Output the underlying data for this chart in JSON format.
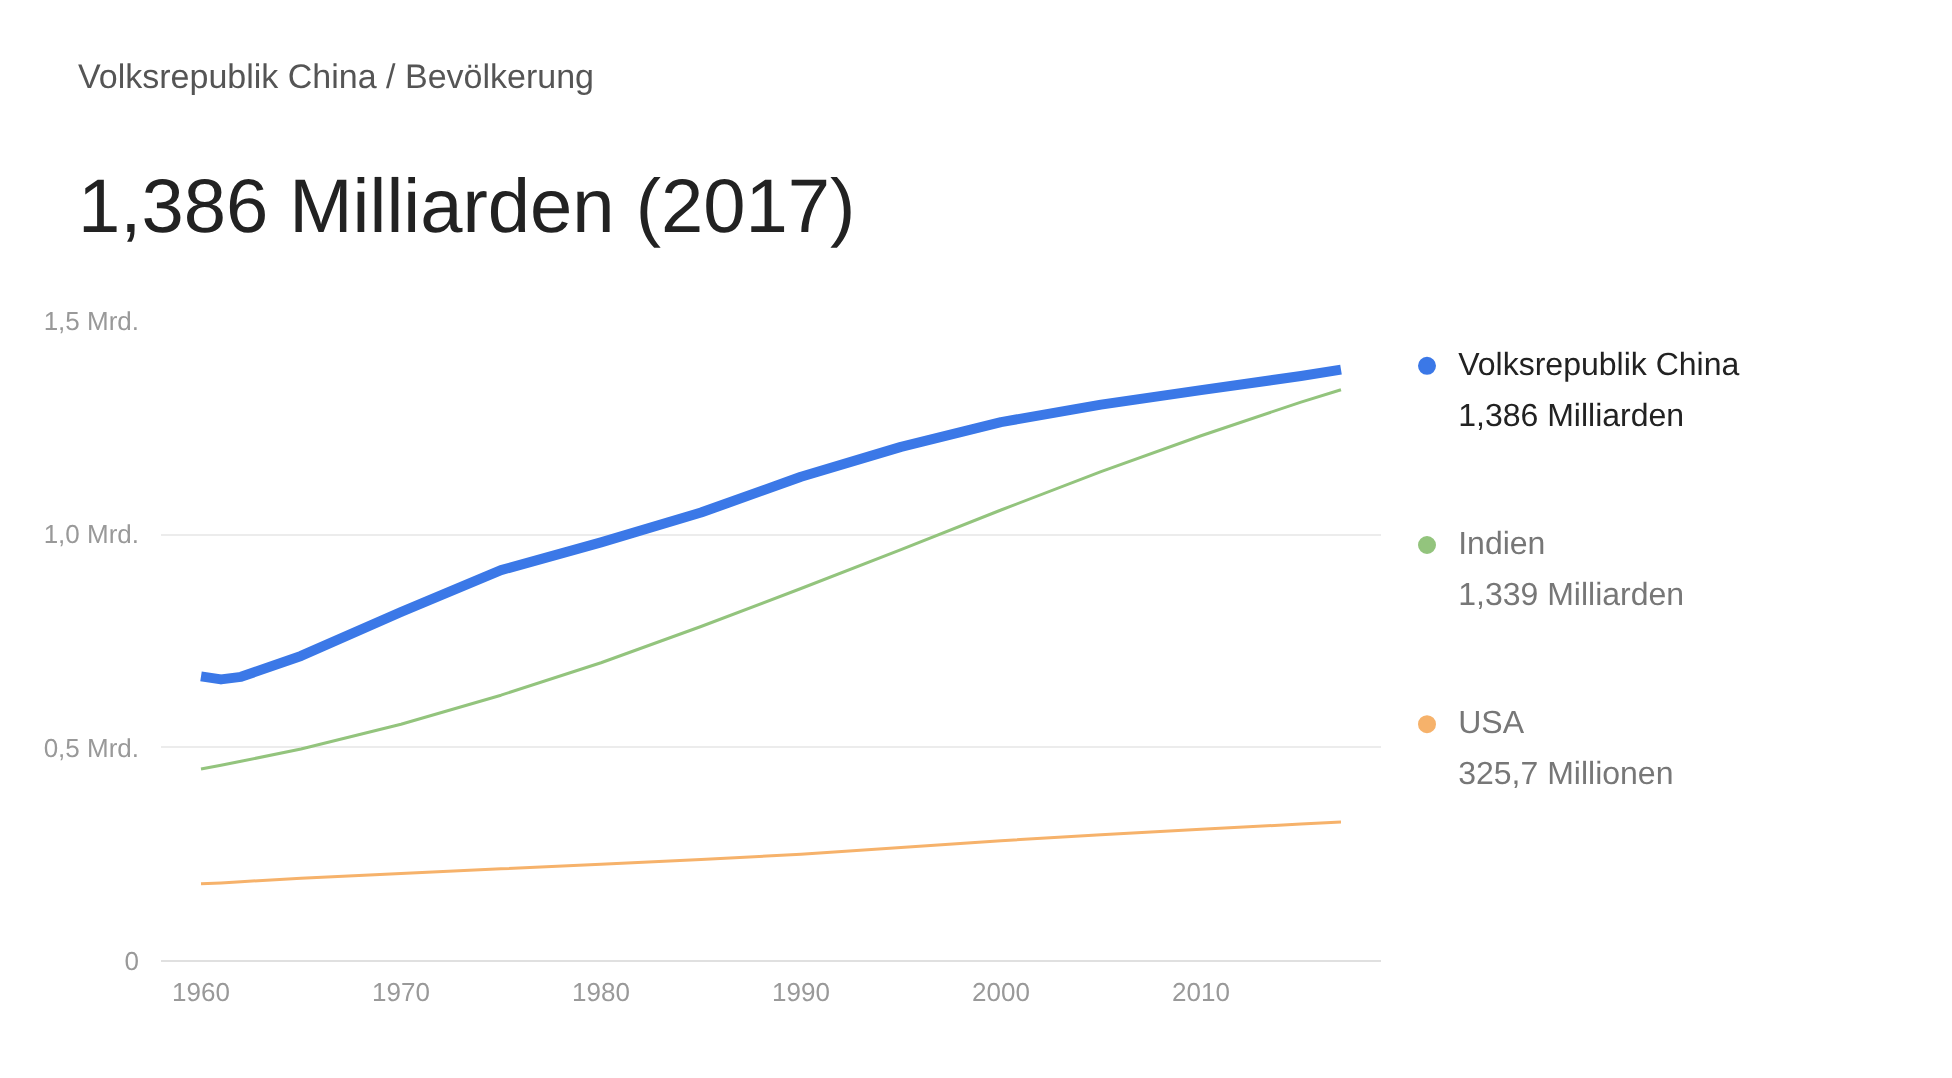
{
  "chart_data": {
    "type": "line",
    "title": "Volksrepublik China / Bevölkerung",
    "subtitle": "1,386 Milliarden (2017)",
    "x": [
      1960,
      1961,
      1962,
      1965,
      1970,
      1975,
      1980,
      1985,
      1990,
      1995,
      2000,
      2005,
      2010,
      2015,
      2017
    ],
    "series": [
      {
        "name": "Volksrepublik China",
        "color": "#3b78e7",
        "values": [
          0.667,
          0.66,
          0.666,
          0.715,
          0.818,
          0.916,
          0.981,
          1.051,
          1.135,
          1.205,
          1.263,
          1.304,
          1.338,
          1.371,
          1.386
        ]
      },
      {
        "name": "Indien",
        "color": "#93c47d",
        "values": [
          0.45,
          0.459,
          0.468,
          0.497,
          0.555,
          0.623,
          0.699,
          0.784,
          0.873,
          0.964,
          1.057,
          1.147,
          1.231,
          1.31,
          1.339
        ]
      },
      {
        "name": "USA",
        "color": "#f6b26b",
        "values": [
          0.181,
          0.183,
          0.186,
          0.194,
          0.205,
          0.216,
          0.227,
          0.238,
          0.25,
          0.266,
          0.282,
          0.296,
          0.309,
          0.321,
          0.326
        ]
      }
    ],
    "annotations": [
      "1,386 Milliarden",
      "1,339 Milliarden",
      "325,7 Millionen"
    ],
    "xlim": [
      1958,
      2019
    ],
    "ylim": [
      0,
      1.5
    ],
    "xticks": [
      1960,
      1970,
      1980,
      1990,
      2000,
      2010
    ],
    "yticks": [
      0,
      {
        "value": 0.5,
        "label": "0,5 Mrd."
      },
      {
        "value": 1.0,
        "label": "1,0 Mrd."
      },
      {
        "value": 1.5,
        "label": "1,5 Mrd."
      }
    ],
    "grid": "y",
    "legend": "right",
    "marker": "none"
  }
}
